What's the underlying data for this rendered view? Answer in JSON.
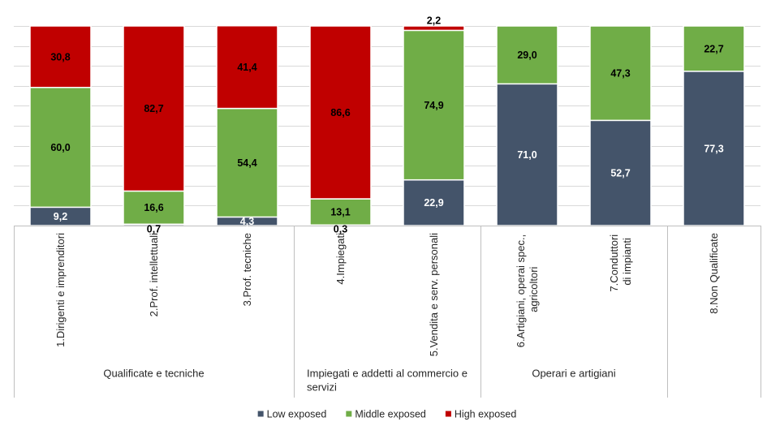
{
  "chart_data": {
    "type": "bar",
    "orientation": "vertical",
    "stacking": "percent",
    "categories": [
      "1.Dirigenti e imprenditori",
      "2.Prof. intellettuali",
      "3.Prof. tecniche",
      "4.Impiegati",
      "5.Vendita e serv. personali",
      "6.Artigiani, operai spec.,\nagricoltori",
      "7.Conduttori\ndi impianti",
      "8.Non Qualificate"
    ],
    "category_groups": [
      {
        "label": "Qualificate e tecniche",
        "category_count": 3
      },
      {
        "label": "Impiegati e addetti al commercio e\nservizi",
        "category_count": 2
      },
      {
        "label": "Operari e artigiani",
        "category_count": 2
      },
      {
        "label": "",
        "category_count": 1
      }
    ],
    "series": [
      {
        "name": "Low exposed",
        "color": "#44546A",
        "label_color": "#FFFFFF",
        "values": [
          9.2,
          0.7,
          4.3,
          0.3,
          22.9,
          71.0,
          52.7,
          77.3
        ],
        "data_labels": [
          "9,2",
          "0,7",
          "4,3",
          "0,3",
          "22,9",
          "71,0",
          "52,7",
          "77,3"
        ]
      },
      {
        "name": "Middle exposed",
        "color": "#70AD47",
        "label_color": "#000000",
        "values": [
          60.0,
          16.6,
          54.4,
          13.1,
          74.9,
          29.0,
          47.3,
          22.7
        ],
        "data_labels": [
          "60,0",
          "16,6",
          "54,4",
          "13,1",
          "74,9",
          "29,0",
          "47,3",
          "22,7"
        ]
      },
      {
        "name": "High exposed",
        "color": "#C00000",
        "label_color": "#000000",
        "values": [
          30.8,
          82.7,
          41.4,
          86.6,
          2.2,
          null,
          null,
          null
        ],
        "data_labels": [
          "30,8",
          "82,7",
          "41,4",
          "86,6",
          "2,2",
          null,
          null,
          null
        ]
      }
    ],
    "ylim": [
      0,
      100
    ],
    "y_major_unit": 10,
    "y_tick_labels_shown": false,
    "gridlines": true,
    "data_labels_shown": true,
    "legend": {
      "position": "bottom"
    }
  }
}
